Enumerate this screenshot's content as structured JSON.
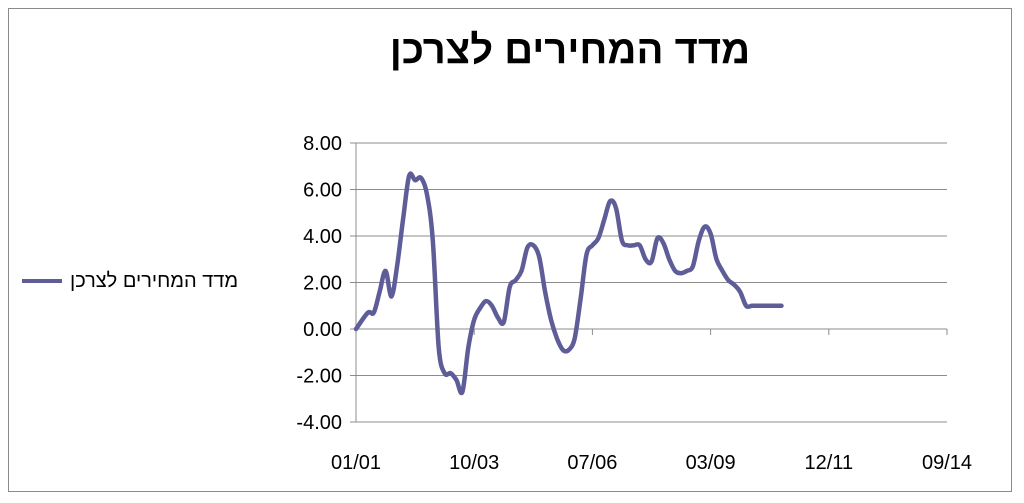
{
  "chart_data": {
    "type": "line",
    "title": "מדד המחירים לצרכן",
    "xlabel": "",
    "ylabel": "",
    "ylim": [
      -4,
      8
    ],
    "y_ticks": [
      "8.00",
      "6.00",
      "4.00",
      "2.00",
      "0.00",
      "-2.00",
      "-4.00"
    ],
    "x_ticks": [
      "01/01",
      "10/03",
      "07/06",
      "03/09",
      "12/11",
      "09/14"
    ],
    "grid": "horizontal",
    "legend_position": "left",
    "line_color": "#5e5d98",
    "series": [
      {
        "name": "מדד המחירים לצרכן",
        "x": [
          0,
          2,
          3,
          4,
          5,
          6,
          7,
          8,
          9,
          10,
          11,
          12,
          13,
          14,
          15,
          16,
          17,
          18,
          19,
          20,
          21,
          22,
          23,
          24,
          25,
          26,
          27,
          28,
          29,
          30,
          31,
          32,
          33,
          34,
          35,
          36,
          37,
          38,
          39,
          40,
          41,
          42,
          43,
          44,
          45,
          46,
          47,
          48,
          49,
          50,
          51,
          52,
          53,
          54,
          55,
          56,
          57,
          58,
          59,
          60,
          61,
          62,
          63,
          64,
          65,
          66,
          67,
          68,
          69,
          70,
          71,
          72,
          73,
          74,
          75,
          76,
          77,
          78,
          79,
          80,
          81,
          82,
          83,
          84,
          85,
          86,
          87,
          88,
          89,
          90,
          91,
          92,
          93,
          94,
          95,
          96,
          97,
          98,
          99,
          100
        ],
        "values": [
          0.0,
          0.7,
          0.7,
          1.6,
          2.5,
          1.4,
          2.8,
          4.8,
          6.6,
          6.4,
          6.5,
          5.8,
          3.8,
          -0.8,
          -1.9,
          -1.9,
          -2.2,
          -2.7,
          -0.8,
          0.4,
          0.9,
          1.2,
          1.0,
          0.5,
          0.3,
          1.8,
          2.1,
          2.5,
          3.5,
          3.6,
          3.1,
          1.6,
          0.4,
          -0.4,
          -0.9,
          -0.9,
          -0.4,
          1.3,
          3.2,
          3.6,
          3.9,
          4.7,
          5.5,
          5.2,
          3.8,
          3.6,
          3.6,
          3.6,
          3.0,
          2.9,
          3.9,
          3.7,
          3.0,
          2.5,
          2.4,
          2.5,
          2.7,
          3.8,
          4.4,
          4.1,
          3.0,
          2.5,
          2.1,
          1.9,
          1.6,
          1.0,
          1.0,
          1.0,
          1.0,
          1.0,
          1.0,
          1.0,
          1.0,
          1.0,
          1.0,
          1.0,
          1.0,
          1.0,
          1.0,
          1.0,
          1.0,
          1.0,
          1.0,
          1.0,
          1.0,
          1.0,
          1.0,
          1.0,
          1.0,
          1.0,
          1.0,
          1.0,
          1.0,
          1.0,
          1.0,
          1.0,
          1.0,
          1.0,
          1.0,
          1.0
        ]
      }
    ]
  }
}
